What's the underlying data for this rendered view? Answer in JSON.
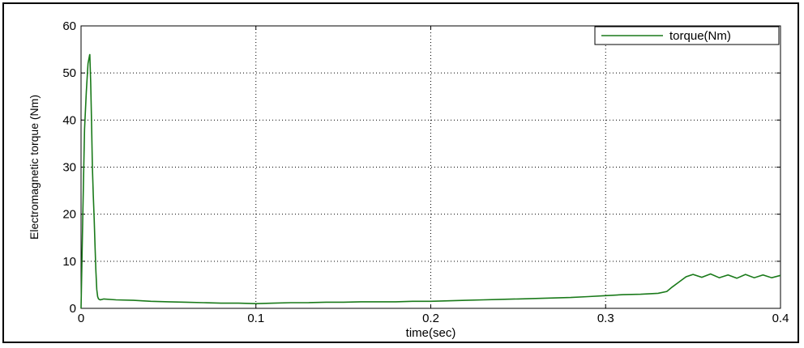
{
  "chart_data": {
    "type": "line",
    "title": "",
    "xlabel": "time(sec)",
    "ylabel": "Electromagnetic torque (Nm)",
    "xlim": [
      0,
      0.4
    ],
    "ylim": [
      0,
      60
    ],
    "xticks": [
      0,
      0.1,
      0.2,
      0.3,
      0.4
    ],
    "xtick_labels": [
      "0",
      "0.1",
      "0.2",
      "0.3",
      "0.4"
    ],
    "yticks": [
      0,
      10,
      20,
      30,
      40,
      50,
      60
    ],
    "ytick_labels": [
      "0",
      "10",
      "20",
      "30",
      "40",
      "50",
      "60"
    ],
    "grid": true,
    "legend_position": "top-right",
    "series": [
      {
        "name": "torque(Nm)",
        "color": "#1a7a1a",
        "x": [
          0,
          0.001,
          0.002,
          0.003,
          0.004,
          0.005,
          0.0055,
          0.006,
          0.0065,
          0.007,
          0.0075,
          0.008,
          0.0085,
          0.009,
          0.0095,
          0.01,
          0.011,
          0.013,
          0.02,
          0.03,
          0.04,
          0.05,
          0.06,
          0.07,
          0.08,
          0.09,
          0.1,
          0.11,
          0.12,
          0.13,
          0.14,
          0.15,
          0.16,
          0.17,
          0.18,
          0.19,
          0.2,
          0.21,
          0.22,
          0.23,
          0.24,
          0.25,
          0.26,
          0.27,
          0.28,
          0.29,
          0.3,
          0.31,
          0.32,
          0.33,
          0.335,
          0.338,
          0.342,
          0.346,
          0.35,
          0.355,
          0.36,
          0.365,
          0.37,
          0.375,
          0.38,
          0.385,
          0.39,
          0.395,
          0.4
        ],
        "y": [
          0,
          20,
          38,
          46,
          52,
          54,
          48,
          40,
          30,
          24,
          19,
          13,
          8,
          4,
          2.5,
          2,
          1.8,
          2,
          1.8,
          1.7,
          1.5,
          1.4,
          1.3,
          1.2,
          1.1,
          1.1,
          1.0,
          1.1,
          1.2,
          1.2,
          1.3,
          1.3,
          1.4,
          1.4,
          1.4,
          1.5,
          1.5,
          1.6,
          1.7,
          1.8,
          1.9,
          2.0,
          2.1,
          2.2,
          2.3,
          2.5,
          2.7,
          2.9,
          3.0,
          3.2,
          3.6,
          4.5,
          5.6,
          6.7,
          7.2,
          6.6,
          7.3,
          6.5,
          7.1,
          6.4,
          7.2,
          6.5,
          7.1,
          6.5,
          7.0
        ]
      }
    ]
  }
}
